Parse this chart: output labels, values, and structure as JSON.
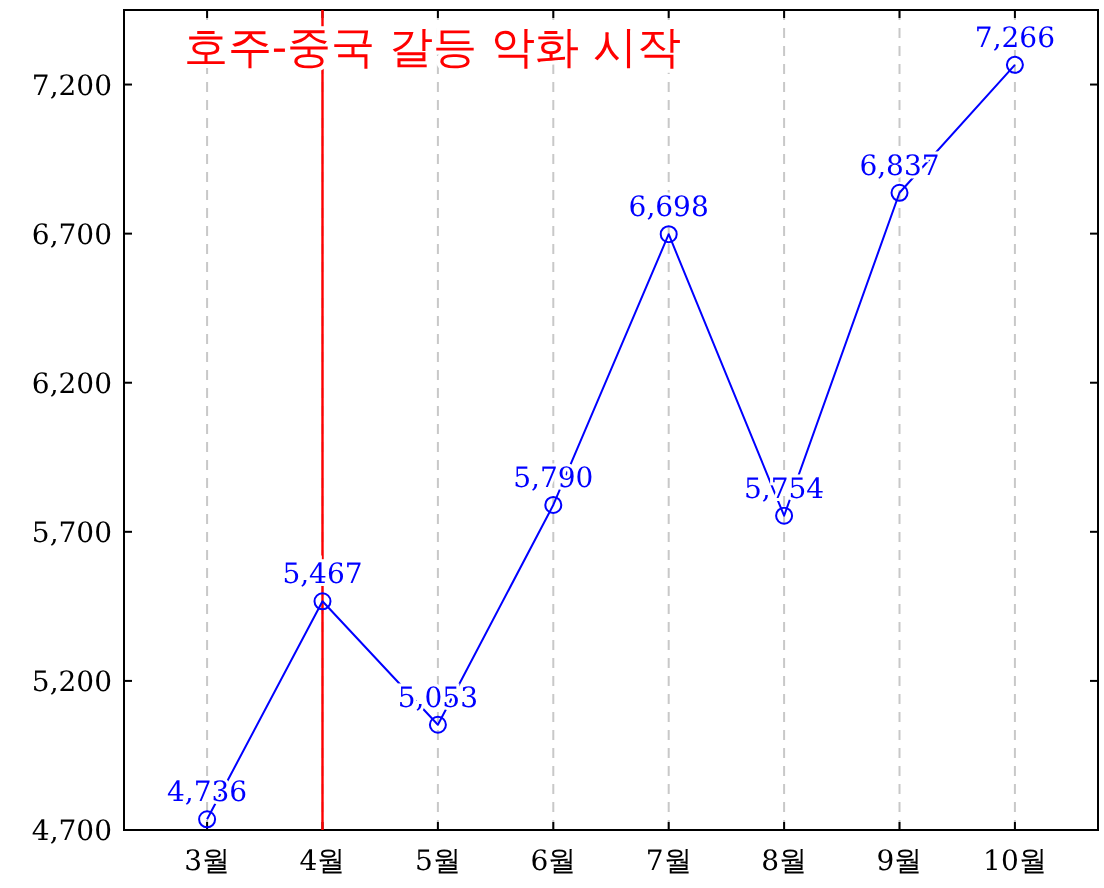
{
  "chart_data": {
    "type": "line",
    "categories": [
      "3월",
      "4월",
      "5월",
      "6월",
      "7월",
      "8월",
      "9월",
      "10월"
    ],
    "series": [
      {
        "color": "#0000ff",
        "values": [
          4736,
          5467,
          5053,
          5790,
          6698,
          5754,
          6837,
          7266
        ],
        "value_labels": [
          "4,736",
          "5,467",
          "5,053",
          "5,790",
          "6,698",
          "5,754",
          "6,837",
          "7,266"
        ]
      }
    ],
    "ylim": [
      4700,
      7450
    ],
    "yticks": [
      {
        "value": 4700,
        "label": "4,700"
      },
      {
        "value": 5200,
        "label": "5,200"
      },
      {
        "value": 5700,
        "label": "5,700"
      },
      {
        "value": 6200,
        "label": "6,200"
      },
      {
        "value": 6700,
        "label": "6,700"
      },
      {
        "value": 7200,
        "label": "7,200"
      }
    ],
    "ref_lines": [
      {
        "axis": "x",
        "value": "4월",
        "label": "호주-중국 갈등 악화 시작",
        "color": "#ff0000"
      }
    ],
    "grid": "x",
    "marker": "circle",
    "line_style": "solid"
  }
}
